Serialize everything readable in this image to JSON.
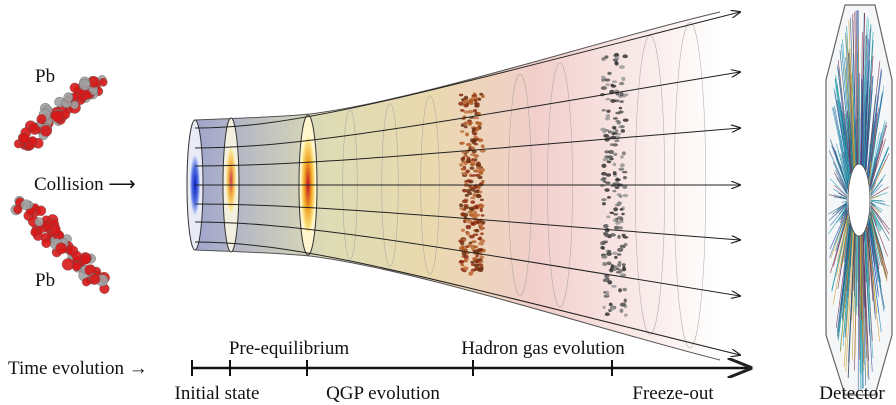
{
  "labels": {
    "pb_top": "Pb",
    "collision": "Collision ⟶",
    "pb_bottom": "Pb",
    "time_evolution": "Time evolution →",
    "detector": "Detector"
  },
  "timeline": {
    "above": [
      "Pre-equilibrium",
      "Hadron gas evolution"
    ],
    "below": [
      "Initial state",
      "QGP evolution",
      "Freeze-out"
    ]
  }
}
